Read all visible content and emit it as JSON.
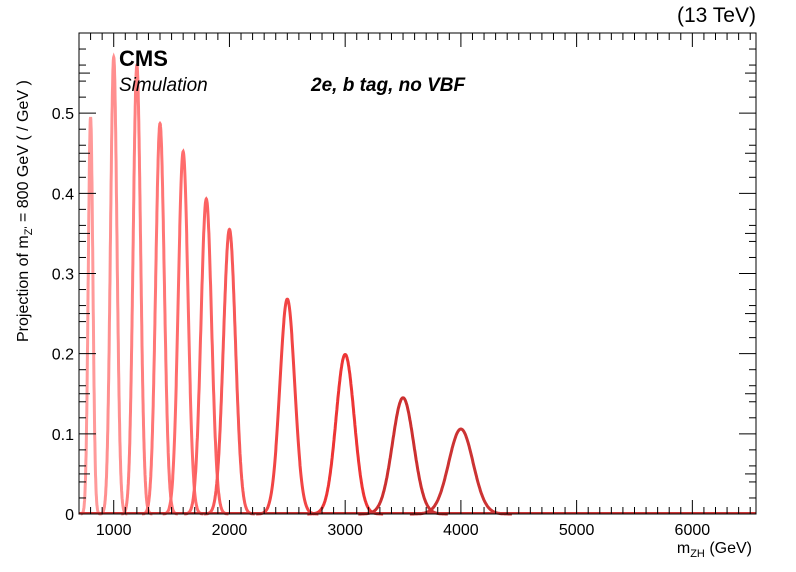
{
  "header": {
    "energy": "(13 TeV)",
    "experiment": "CMS",
    "subtitle": "Simulation",
    "category": "2e, b tag, no VBF"
  },
  "chart_data": {
    "type": "line",
    "xlabel_main": "m",
    "xlabel_sub": "ZH",
    "xlabel_unit": " (GeV)",
    "ylabel_main": "Projection of m",
    "ylabel_sub": "Z'",
    "ylabel_rest": " = 800 GeV ( / GeV )",
    "xlim": [
      700,
      6550
    ],
    "ylim": [
      0,
      0.6
    ],
    "x_ticks": [
      1000,
      2000,
      3000,
      4000,
      5000,
      6000
    ],
    "y_ticks": [
      0,
      0.1,
      0.2,
      0.3,
      0.4,
      0.5
    ],
    "x_tick_labels": [
      "1000",
      "2000",
      "3000",
      "4000",
      "5000",
      "6000"
    ],
    "y_tick_labels": [
      "0",
      "0.1",
      "0.2",
      "0.3",
      "0.4",
      "0.5"
    ],
    "series": [
      {
        "mass": 800,
        "peak": 0.495,
        "width": 20,
        "color": "#ff9999"
      },
      {
        "mass": 1000,
        "peak": 0.57,
        "width": 28,
        "color": "#ff8f8f"
      },
      {
        "mass": 1200,
        "peak": 0.56,
        "width": 32,
        "color": "#ff7f7f"
      },
      {
        "mass": 1400,
        "peak": 0.487,
        "width": 37,
        "color": "#ff7676"
      },
      {
        "mass": 1600,
        "peak": 0.452,
        "width": 42,
        "color": "#ff6c6c"
      },
      {
        "mass": 1800,
        "peak": 0.393,
        "width": 46,
        "color": "#fb6262"
      },
      {
        "mass": 2000,
        "peak": 0.355,
        "width": 52,
        "color": "#f75858"
      },
      {
        "mass": 2500,
        "peak": 0.268,
        "width": 64,
        "color": "#f14545"
      },
      {
        "mass": 3000,
        "peak": 0.199,
        "width": 78,
        "color": "#ed3535"
      },
      {
        "mass": 3500,
        "peak": 0.145,
        "width": 92,
        "color": "#cc3030"
      },
      {
        "mass": 4000,
        "peak": 0.106,
        "width": 105,
        "color": "#cc3333"
      }
    ]
  }
}
